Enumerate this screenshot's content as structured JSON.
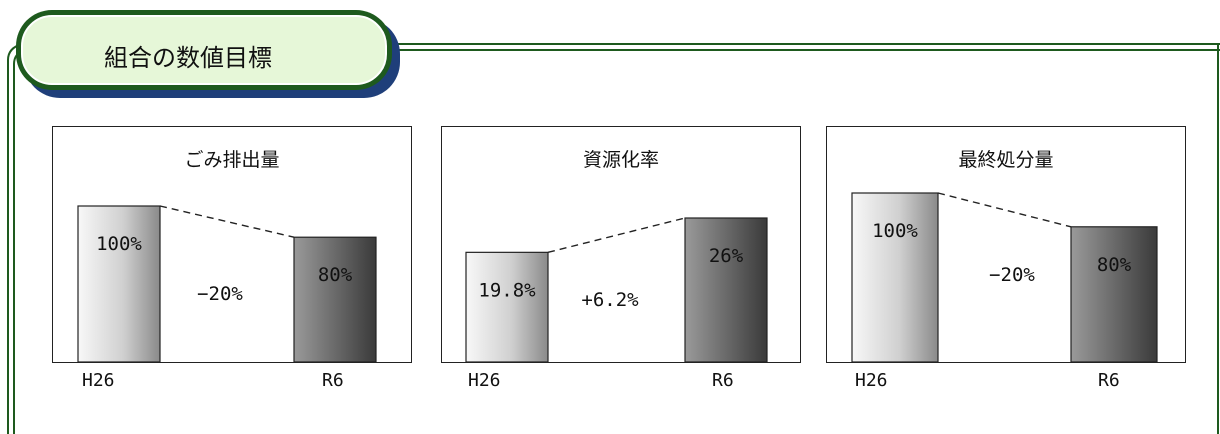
{
  "header": {
    "title": "組合の数値目標"
  },
  "chart_data": [
    {
      "type": "bar",
      "title": "ごみ排出量",
      "categories": [
        "H26",
        "R6"
      ],
      "values": [
        100,
        80
      ],
      "value_labels": [
        "100%",
        "80%"
      ],
      "change_label": "−20%",
      "ylim": [
        0,
        100
      ]
    },
    {
      "type": "bar",
      "title": "資源化率",
      "categories": [
        "H26",
        "R6"
      ],
      "values": [
        19.8,
        26
      ],
      "value_labels": [
        "19.8%",
        "26%"
      ],
      "change_label": "+6.2%",
      "ylim": [
        0,
        26
      ]
    },
    {
      "type": "bar",
      "title": "最終処分量",
      "categories": [
        "H26",
        "R6"
      ],
      "values": [
        100,
        80
      ],
      "value_labels": [
        "100%",
        "80%"
      ],
      "change_label": "−20%",
      "ylim": [
        0,
        100
      ]
    }
  ],
  "colors": {
    "banner_fill": "#e6f7d8",
    "banner_border": "#1e5a1e",
    "banner_shadow": "#1f3f7a",
    "bar_light": "#f4f4f4",
    "bar_dark": "#6e6e6e"
  }
}
